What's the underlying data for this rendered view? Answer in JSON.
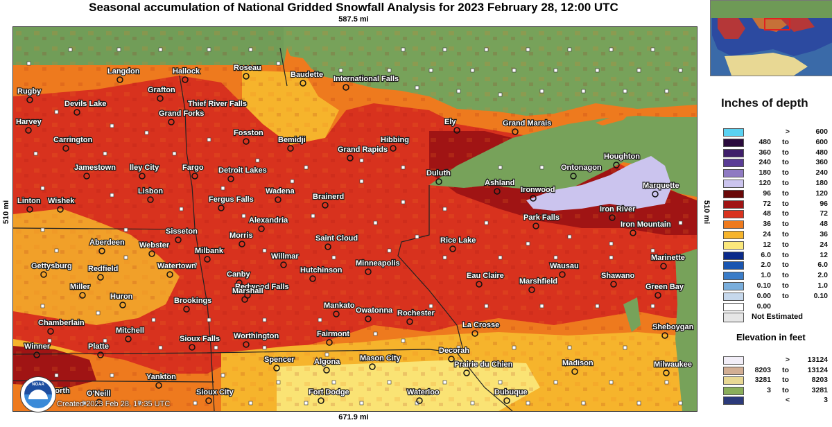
{
  "title": "Seasonal accumulation of National Gridded Snowfall Analysis for 2023 February 28, 12:00 UTC",
  "dimensions": {
    "top": "587.5 mi",
    "bottom": "671.9 mi",
    "left": "510 mi",
    "right": "510 mi"
  },
  "credit": "Created 2023 Feb 28, 17:35 UTC",
  "logo_text": "NOAA",
  "cities": [
    {
      "name": "Langdon"
    },
    {
      "name": "Hallock"
    },
    {
      "name": "Roseau"
    },
    {
      "name": "Baudette"
    },
    {
      "name": "International Falls"
    },
    {
      "name": "Rugby"
    },
    {
      "name": "Grafton"
    },
    {
      "name": "Devils Lake"
    },
    {
      "name": "Thief River Falls"
    },
    {
      "name": "Grand Forks"
    },
    {
      "name": "Harvey"
    },
    {
      "name": "Carrington"
    },
    {
      "name": "Fosston"
    },
    {
      "name": "Bemidji"
    },
    {
      "name": "Hibbing"
    },
    {
      "name": "Grand Rapids"
    },
    {
      "name": "Ely"
    },
    {
      "name": "Grand Marais"
    },
    {
      "name": "Jamestown"
    },
    {
      "name": "lley City"
    },
    {
      "name": "Fargo"
    },
    {
      "name": "Detroit Lakes"
    },
    {
      "name": "Duluth"
    },
    {
      "name": "Houghton"
    },
    {
      "name": "Ontonagon"
    },
    {
      "name": "Ashland"
    },
    {
      "name": "Ironwood"
    },
    {
      "name": "Marquette"
    },
    {
      "name": "Linton"
    },
    {
      "name": "Wishek"
    },
    {
      "name": "Lisbon"
    },
    {
      "name": "Wadena"
    },
    {
      "name": "Brainerd"
    },
    {
      "name": "Fergus Falls"
    },
    {
      "name": "Iron River"
    },
    {
      "name": "Park Falls"
    },
    {
      "name": "Iron Mountain"
    },
    {
      "name": "Alexandria"
    },
    {
      "name": "Sisseton"
    },
    {
      "name": "Aberdeen"
    },
    {
      "name": "Webster"
    },
    {
      "name": "Morris"
    },
    {
      "name": "Saint Cloud"
    },
    {
      "name": "Rice Lake"
    },
    {
      "name": "Milbank"
    },
    {
      "name": "Gettysburg"
    },
    {
      "name": "Redfield"
    },
    {
      "name": "Watertown"
    },
    {
      "name": "Willmar"
    },
    {
      "name": "Minneapolis"
    },
    {
      "name": "Hutchinson"
    },
    {
      "name": "Wausau"
    },
    {
      "name": "Marinette"
    },
    {
      "name": "Eau Claire"
    },
    {
      "name": "Canby"
    },
    {
      "name": "Miller"
    },
    {
      "name": "Redwood Falls"
    },
    {
      "name": "Marshall"
    },
    {
      "name": "Marshfield"
    },
    {
      "name": "Shawano"
    },
    {
      "name": "Huron"
    },
    {
      "name": "Brookings"
    },
    {
      "name": "Green Bay"
    },
    {
      "name": "Mankato"
    },
    {
      "name": "Owatonna"
    },
    {
      "name": "Rochester"
    },
    {
      "name": "Chamberlain"
    },
    {
      "name": "La Crosse"
    },
    {
      "name": "Mitchell"
    },
    {
      "name": "Fairmont"
    },
    {
      "name": "Sioux Falls"
    },
    {
      "name": "Worthington"
    },
    {
      "name": "Sheboygan"
    },
    {
      "name": "Winner"
    },
    {
      "name": "Platte"
    },
    {
      "name": "Decorah"
    },
    {
      "name": "Spencer"
    },
    {
      "name": "Algona"
    },
    {
      "name": "Mason City"
    },
    {
      "name": "Prairie du Chien"
    },
    {
      "name": "Madison"
    },
    {
      "name": "Milwaukee"
    },
    {
      "name": "Yankton"
    },
    {
      "name": "Ainsworth"
    },
    {
      "name": "O'Neill"
    },
    {
      "name": "Sioux City"
    },
    {
      "name": "Fort Dodge"
    },
    {
      "name": "Waterloo"
    },
    {
      "name": "Dubuque"
    }
  ],
  "legend": {
    "title": "Inches of depth",
    "rows": [
      {
        "lo": "",
        "to": ">",
        "hi": "600",
        "color": "#5ad2f2"
      },
      {
        "lo": "480",
        "to": "to",
        "hi": "600",
        "color": "#2a0a3c"
      },
      {
        "lo": "360",
        "to": "to",
        "hi": "480",
        "color": "#3f1e6a"
      },
      {
        "lo": "240",
        "to": "to",
        "hi": "360",
        "color": "#5a3c96"
      },
      {
        "lo": "180",
        "to": "to",
        "hi": "240",
        "color": "#8f7ac2"
      },
      {
        "lo": "120",
        "to": "to",
        "hi": "180",
        "color": "#cbc4ee"
      },
      {
        "lo": "96",
        "to": "to",
        "hi": "120",
        "color": "#6a0808"
      },
      {
        "lo": "72",
        "to": "to",
        "hi": "96",
        "color": "#a01414"
      },
      {
        "lo": "48",
        "to": "to",
        "hi": "72",
        "color": "#d8321e"
      },
      {
        "lo": "36",
        "to": "to",
        "hi": "48",
        "color": "#ee7a1e"
      },
      {
        "lo": "24",
        "to": "to",
        "hi": "36",
        "color": "#f6b42c"
      },
      {
        "lo": "12",
        "to": "to",
        "hi": "24",
        "color": "#fbe87c"
      },
      {
        "lo": "6.0",
        "to": "to",
        "hi": "12",
        "color": "#0a2a8a"
      },
      {
        "lo": "2.0",
        "to": "to",
        "hi": "6.0",
        "color": "#1a55b0"
      },
      {
        "lo": "1.0",
        "to": "to",
        "hi": "2.0",
        "color": "#3a7cc8"
      },
      {
        "lo": "0.10",
        "to": "to",
        "hi": "1.0",
        "color": "#7aaedc"
      },
      {
        "lo": "0.00",
        "to": "to",
        "hi": "0.10",
        "color": "#c6d8ec"
      },
      {
        "lo": "0.00",
        "to": "",
        "hi": "",
        "color": "#ffffff"
      }
    ],
    "not_estimated": "Not Estimated"
  },
  "elevation": {
    "title": "Elevation in feet",
    "rows": [
      {
        "lo": "",
        "to": ">",
        "hi": "13124",
        "color": "#f2eef8"
      },
      {
        "lo": "8203",
        "to": "to",
        "hi": "13124",
        "color": "#d2ae94"
      },
      {
        "lo": "3281",
        "to": "to",
        "hi": "8203",
        "color": "#e8d894"
      },
      {
        "lo": "3",
        "to": "to",
        "hi": "3281",
        "color": "#8aae5a"
      },
      {
        "lo": "",
        "to": "<",
        "hi": "3",
        "color": "#2c3a7a"
      }
    ]
  }
}
